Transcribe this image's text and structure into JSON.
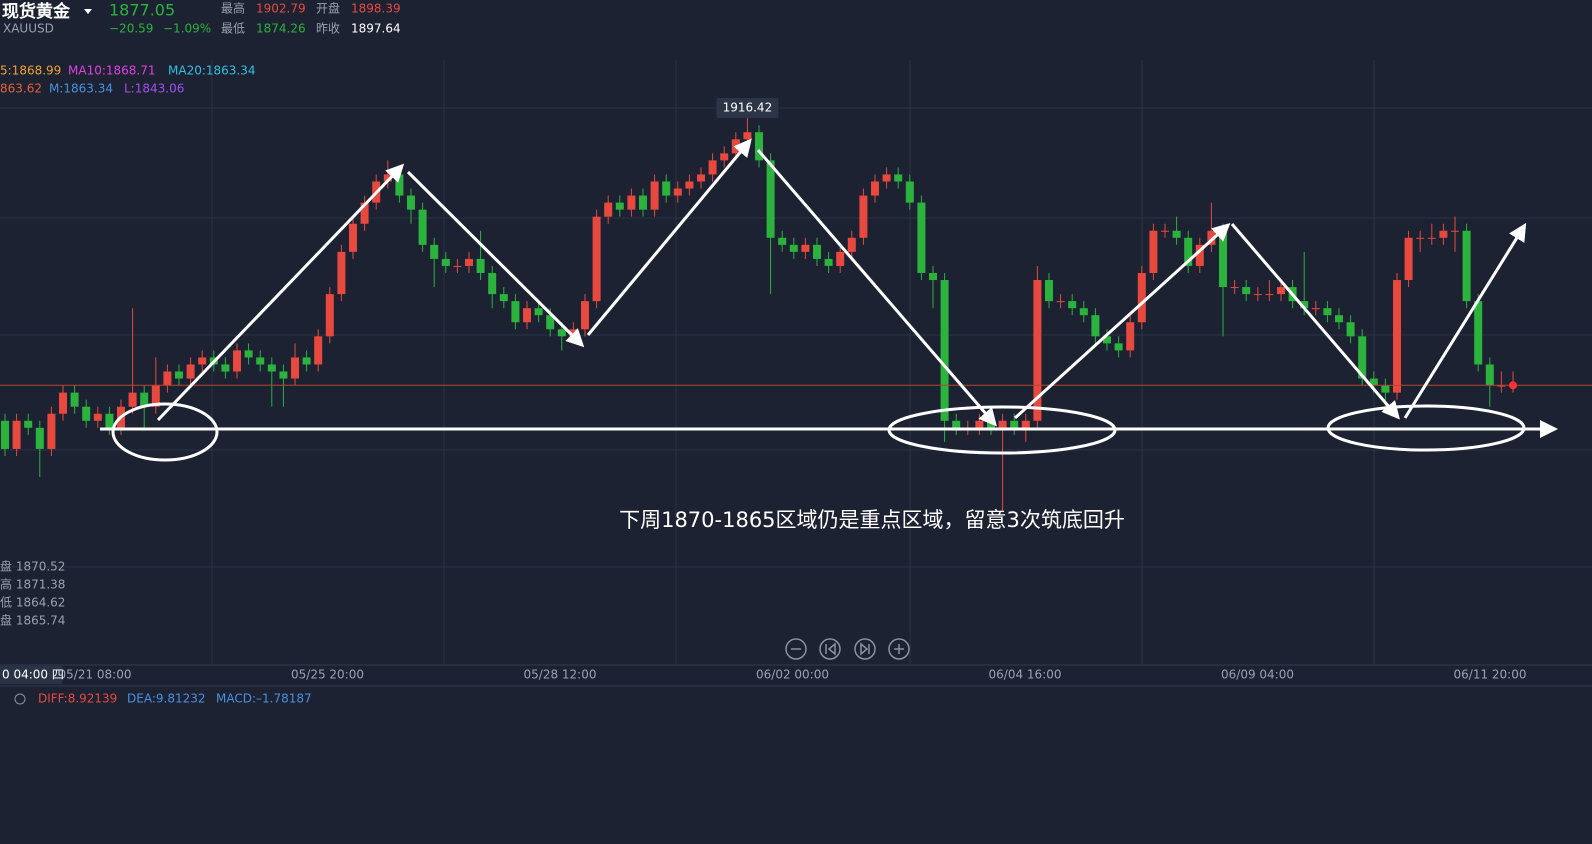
{
  "quote": {
    "name": "现货黄金",
    "symbol": "XAUUSD",
    "last": 1877.05,
    "change": "−20.59",
    "change_pct": "−1.09%",
    "high_label": "最高",
    "high": 1902.79,
    "open_label": "开盘",
    "open": 1898.39,
    "low_label": "最低",
    "low": 1874.26,
    "prev_label": "昨收",
    "prev": 1897.64
  },
  "indicators": {
    "ma": [
      "5:1868.99",
      "MA10:1868.71",
      "MA20:1863.34"
    ],
    "boll": [
      "863.62",
      "M:1863.34",
      "L:1843.06"
    ],
    "macd": [
      "DIFF:8.92139",
      "DEA:9.81232",
      "MACD:–1.78187"
    ]
  },
  "cursor": {
    "lines": [
      "盘 1870.52",
      "高 1871.38",
      "低 1864.62",
      "盘 1865.74"
    ],
    "time": "0 04:00 四"
  },
  "chart_data": {
    "type": "candlestick",
    "ylim": [
      1837.3,
      1919
    ],
    "up_color": "#e8493f",
    "down_color": "#2bb33e",
    "annotation": "下周1870-1865区域仍是重点区域，留意3次筑底回升",
    "x_labels": [
      "05/21 08:00",
      "05/25 20:00",
      "05/28 12:00",
      "06/02 00:00",
      "06/04 16:00",
      "06/09 04:00",
      "06/11 20:00"
    ],
    "ohlc": [
      [
        1872,
        1873,
        1867,
        1868
      ],
      [
        1868,
        1873,
        1867,
        1872
      ],
      [
        1872,
        1873,
        1870,
        1871
      ],
      [
        1871,
        1872,
        1864,
        1868
      ],
      [
        1868,
        1874,
        1867,
        1873
      ],
      [
        1873,
        1877,
        1872,
        1876
      ],
      [
        1876,
        1877,
        1873,
        1874
      ],
      [
        1874,
        1875,
        1871,
        1872
      ],
      [
        1872,
        1874,
        1871,
        1873
      ],
      [
        1873,
        1874,
        1870,
        1871
      ],
      [
        1871,
        1875,
        1870,
        1874
      ],
      [
        1874,
        1888,
        1873,
        1876
      ],
      [
        1876,
        1877,
        1871,
        1874
      ],
      [
        1874,
        1881,
        1873,
        1877
      ],
      [
        1877,
        1880,
        1876,
        1879
      ],
      [
        1879,
        1880,
        1877,
        1878
      ],
      [
        1878,
        1881,
        1877,
        1880
      ],
      [
        1880,
        1882,
        1879,
        1881
      ],
      [
        1881,
        1882,
        1879,
        1880
      ],
      [
        1880,
        1881,
        1878,
        1879
      ],
      [
        1879,
        1883,
        1878,
        1882
      ],
      [
        1882,
        1883,
        1880,
        1881
      ],
      [
        1881,
        1882,
        1879,
        1880
      ],
      [
        1880,
        1881,
        1874,
        1879
      ],
      [
        1879,
        1880,
        1874,
        1878
      ],
      [
        1878,
        1883,
        1877,
        1881
      ],
      [
        1881,
        1882,
        1879,
        1880
      ],
      [
        1880,
        1885,
        1879,
        1884
      ],
      [
        1884,
        1891,
        1883,
        1890
      ],
      [
        1890,
        1897,
        1889,
        1896
      ],
      [
        1896,
        1901,
        1895,
        1900
      ],
      [
        1900,
        1904,
        1899,
        1903
      ],
      [
        1903,
        1907,
        1902,
        1906
      ],
      [
        1906,
        1909,
        1905,
        1907
      ],
      [
        1907,
        1908,
        1903,
        1904
      ],
      [
        1904,
        1905,
        1900,
        1902
      ],
      [
        1902,
        1903,
        1896,
        1897
      ],
      [
        1897,
        1898,
        1891,
        1895
      ],
      [
        1895,
        1896,
        1893,
        1894
      ],
      [
        1894,
        1895,
        1893,
        1894
      ],
      [
        1894,
        1896,
        1893,
        1895
      ],
      [
        1895,
        1899,
        1892,
        1893
      ],
      [
        1893,
        1894,
        1888,
        1890
      ],
      [
        1890,
        1891,
        1888,
        1889
      ],
      [
        1889,
        1890,
        1885,
        1886
      ],
      [
        1886,
        1889,
        1885,
        1888
      ],
      [
        1888,
        1889,
        1886,
        1887
      ],
      [
        1887,
        1888,
        1884,
        1885
      ],
      [
        1885,
        1886,
        1882,
        1884
      ],
      [
        1884,
        1886,
        1883,
        1885
      ],
      [
        1885,
        1890,
        1884,
        1889
      ],
      [
        1889,
        1902,
        1888,
        1901
      ],
      [
        1901,
        1904,
        1900,
        1903
      ],
      [
        1903,
        1904,
        1901,
        1902
      ],
      [
        1902,
        1905,
        1901,
        1904
      ],
      [
        1904,
        1905,
        1901,
        1902
      ],
      [
        1902,
        1907,
        1901,
        1906
      ],
      [
        1906,
        1907,
        1903,
        1904
      ],
      [
        1904,
        1906,
        1903,
        1905
      ],
      [
        1905,
        1907,
        1904,
        1906
      ],
      [
        1906,
        1908,
        1905,
        1907
      ],
      [
        1907,
        1910,
        1906,
        1909
      ],
      [
        1909,
        1911,
        1908,
        1910
      ],
      [
        1910,
        1913,
        1909,
        1912
      ],
      [
        1912,
        1916.42,
        1911,
        1913
      ],
      [
        1913,
        1914,
        1908,
        1909
      ],
      [
        1909,
        1910,
        1890,
        1898
      ],
      [
        1898,
        1899,
        1896,
        1897
      ],
      [
        1897,
        1898,
        1895,
        1896
      ],
      [
        1896,
        1898,
        1895,
        1897
      ],
      [
        1897,
        1898,
        1894,
        1895
      ],
      [
        1895,
        1896,
        1893,
        1894
      ],
      [
        1894,
        1897,
        1893,
        1896
      ],
      [
        1896,
        1899,
        1895,
        1898
      ],
      [
        1898,
        1905,
        1897,
        1904
      ],
      [
        1904,
        1907,
        1903,
        1906
      ],
      [
        1906,
        1908,
        1905,
        1907
      ],
      [
        1907,
        1908,
        1905,
        1906
      ],
      [
        1906,
        1907,
        1902,
        1903
      ],
      [
        1903,
        1904,
        1892,
        1893
      ],
      [
        1893,
        1894,
        1888,
        1892
      ],
      [
        1892,
        1893,
        1869,
        1872
      ],
      [
        1872,
        1873,
        1870,
        1871
      ],
      [
        1871,
        1872,
        1870,
        1871
      ],
      [
        1871,
        1873,
        1870,
        1872
      ],
      [
        1872,
        1873,
        1870,
        1871
      ],
      [
        1871,
        1873,
        1859,
        1872
      ],
      [
        1872,
        1873,
        1870,
        1871
      ],
      [
        1871,
        1873,
        1869,
        1872
      ],
      [
        1872,
        1894,
        1871,
        1892
      ],
      [
        1892,
        1893,
        1888,
        1889
      ],
      [
        1889,
        1890,
        1888,
        1889
      ],
      [
        1889,
        1890,
        1887,
        1888
      ],
      [
        1888,
        1889,
        1886,
        1887
      ],
      [
        1887,
        1888,
        1883,
        1884
      ],
      [
        1884,
        1885,
        1882,
        1883
      ],
      [
        1883,
        1884,
        1881,
        1882
      ],
      [
        1882,
        1887,
        1881,
        1886
      ],
      [
        1886,
        1894,
        1885,
        1893
      ],
      [
        1893,
        1900,
        1892,
        1899
      ],
      [
        1899,
        1900,
        1898,
        1899
      ],
      [
        1899,
        1901,
        1897,
        1898
      ],
      [
        1898,
        1899,
        1893,
        1894
      ],
      [
        1894,
        1898,
        1893,
        1897
      ],
      [
        1897,
        1903,
        1896,
        1899
      ],
      [
        1899,
        1900,
        1884,
        1891
      ],
      [
        1891,
        1892,
        1890,
        1891
      ],
      [
        1891,
        1892,
        1889,
        1890
      ],
      [
        1890,
        1891,
        1889,
        1890
      ],
      [
        1890,
        1892,
        1889,
        1890
      ],
      [
        1890,
        1892,
        1889,
        1891
      ],
      [
        1891,
        1892,
        1888,
        1889
      ],
      [
        1889,
        1896,
        1887,
        1888
      ],
      [
        1888,
        1889,
        1887,
        1888
      ],
      [
        1888,
        1889,
        1886,
        1887
      ],
      [
        1887,
        1888,
        1885,
        1886
      ],
      [
        1886,
        1887,
        1883,
        1884
      ],
      [
        1884,
        1885,
        1877,
        1878
      ],
      [
        1878,
        1879,
        1876,
        1877
      ],
      [
        1877,
        1878,
        1874,
        1876
      ],
      [
        1876,
        1893,
        1875,
        1892
      ],
      [
        1892,
        1899,
        1891,
        1898
      ],
      [
        1898,
        1899,
        1896,
        1898
      ],
      [
        1898,
        1900,
        1897,
        1898
      ],
      [
        1898,
        1900,
        1897,
        1899
      ],
      [
        1899,
        1901,
        1896,
        1899
      ],
      [
        1899,
        1900,
        1888,
        1889
      ],
      [
        1889,
        1890,
        1879,
        1880
      ],
      [
        1880,
        1881,
        1874,
        1877
      ],
      [
        1877,
        1879,
        1876,
        1877
      ],
      [
        1877,
        1879,
        1876,
        1877.05
      ]
    ]
  }
}
